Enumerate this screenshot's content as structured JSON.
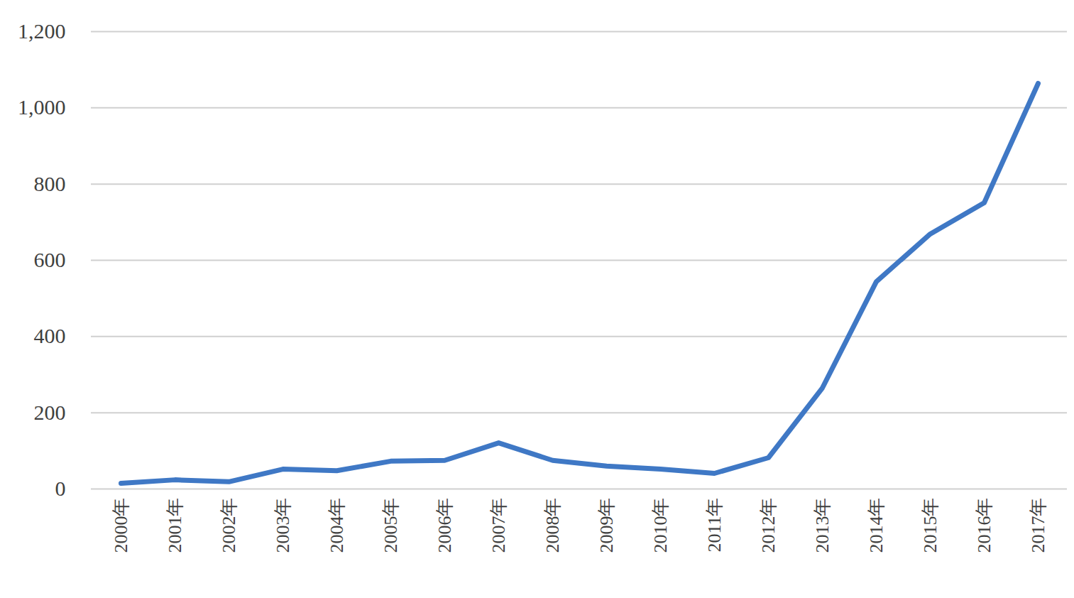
{
  "chart_data": {
    "type": "line",
    "categories": [
      "2000年",
      "2001年",
      "2002年",
      "2003年",
      "2004年",
      "2005年",
      "2006年",
      "2007年",
      "2008年",
      "2009年",
      "2010年",
      "2011年",
      "2012年",
      "2013年",
      "2014年",
      "2015年",
      "2016年",
      "2017年"
    ],
    "values": [
      15,
      24,
      19,
      52,
      48,
      73,
      75,
      121,
      75,
      60,
      52,
      41,
      82,
      265,
      544,
      669,
      751,
      1064
    ],
    "color": "#3f78c5",
    "ylim": [
      0,
      1200
    ],
    "yticks": [
      0,
      200,
      400,
      600,
      800,
      1000,
      1200
    ],
    "grid": true
  }
}
